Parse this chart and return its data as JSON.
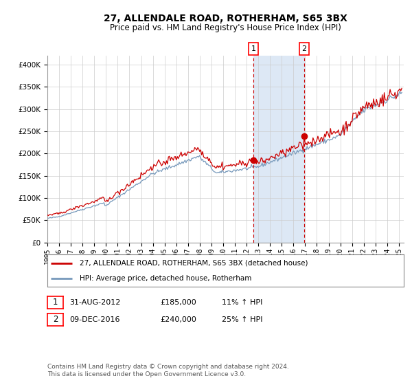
{
  "title": "27, ALLENDALE ROAD, ROTHERHAM, S65 3BX",
  "subtitle": "Price paid vs. HM Land Registry's House Price Index (HPI)",
  "legend_line1": "27, ALLENDALE ROAD, ROTHERHAM, S65 3BX (detached house)",
  "legend_line2": "HPI: Average price, detached house, Rotherham",
  "transaction1_date": "31-AUG-2012",
  "transaction1_price": 185000,
  "transaction1_label": "11% ↑ HPI",
  "transaction2_date": "09-DEC-2016",
  "transaction2_price": 240000,
  "transaction2_label": "25% ↑ HPI",
  "footer": "Contains HM Land Registry data © Crown copyright and database right 2024.\nThis data is licensed under the Open Government Licence v3.0.",
  "red_color": "#cc0000",
  "blue_color": "#7799bb",
  "shade_color": "#dde8f5",
  "ylim": [
    0,
    420000
  ],
  "yticks": [
    0,
    50000,
    100000,
    150000,
    200000,
    250000,
    300000,
    350000,
    400000
  ]
}
